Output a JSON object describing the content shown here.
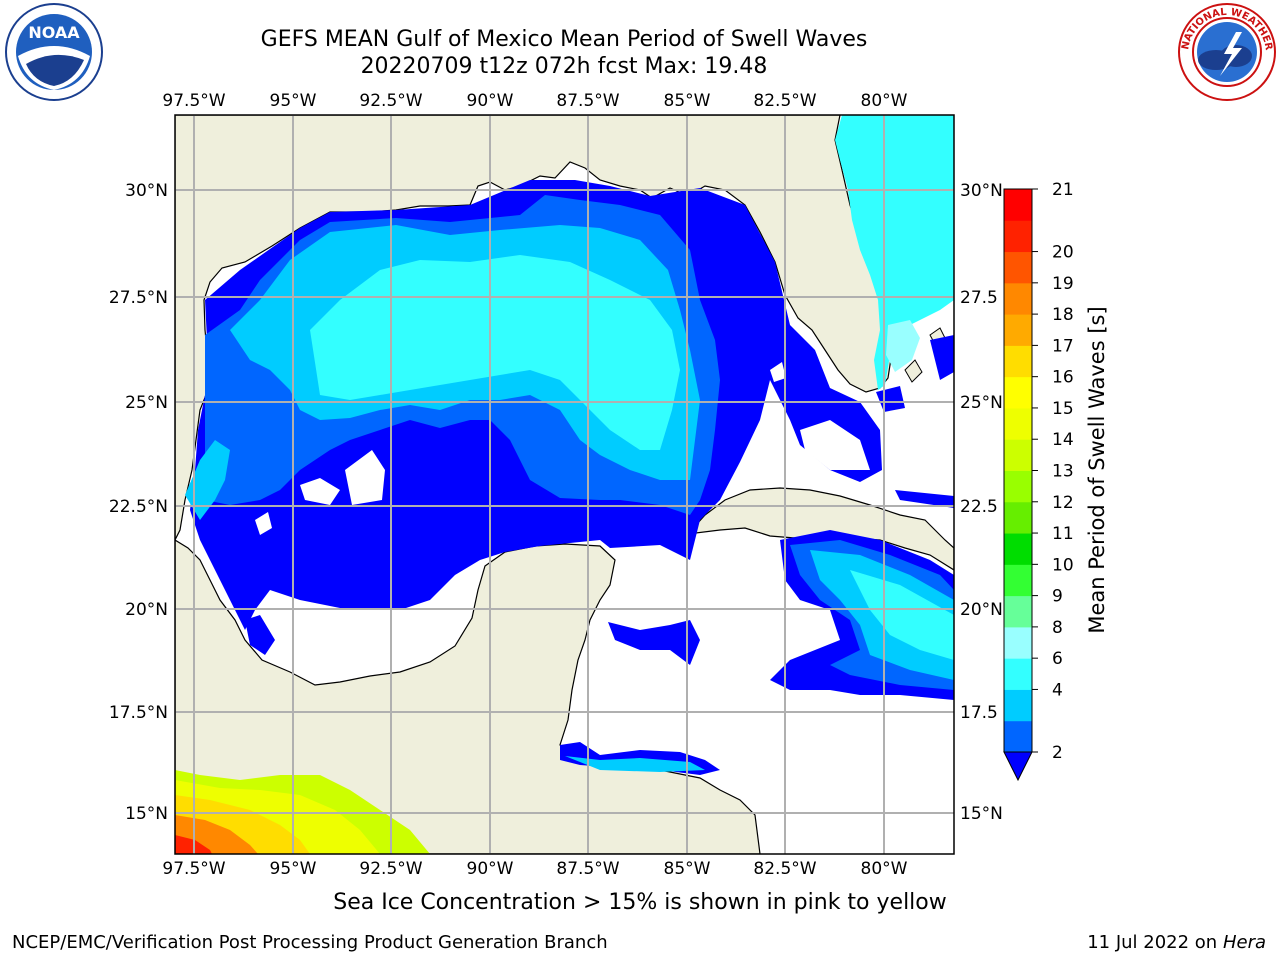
{
  "title_line1": "GEFS MEAN Gulf of Mexico Mean Period of Swell Waves",
  "title_line2": "20220709 t12z 072h fcst   Max: 19.48",
  "lon_labels": [
    "97.5°W",
    "95°W",
    "92.5°W",
    "90°W",
    "87.5°W",
    "85°W",
    "82.5°W",
    "80°W"
  ],
  "lat_labels_left": [
    "30°N",
    "27.5°N",
    "25°N",
    "22.5°N",
    "20°N",
    "17.5°N",
    "15°N"
  ],
  "lat_labels_right": [
    "30°N",
    "27.5",
    "25°N",
    "22.5",
    "20°N",
    "17.5",
    "15°N"
  ],
  "colorbar": {
    "label": "Mean Period of Swell Waves [s]",
    "ticks": [
      "2",
      "4",
      "6",
      "8",
      "9",
      "10",
      "11",
      "12",
      "13",
      "14",
      "15",
      "16",
      "17",
      "18",
      "19",
      "20",
      "21"
    ],
    "colors": [
      "#0066ff",
      "#00ccff",
      "#33ffff",
      "#99ffff",
      "#66ff99",
      "#33ff33",
      "#00dd00",
      "#66ee00",
      "#99ff00",
      "#ccff00",
      "#eeff00",
      "#ffff00",
      "#ffdd00",
      "#ffaa00",
      "#ff8800",
      "#ff5500",
      "#ff2200",
      "#ff0000"
    ],
    "under_color": "#0000ff"
  },
  "colors": {
    "land": "#efefdc",
    "ocean_no_data": "#ffffff",
    "grid": "#b0b0b0"
  },
  "note": "Sea Ice Concentration > 15% is shown in pink to yellow",
  "footer_left": "NCEP/EMC/Verification Post Processing Product Generation Branch",
  "footer_right_date": "11 Jul 2022 on",
  "footer_right_host": "Hera",
  "logos": {
    "left": "noaa-logo",
    "left_text": "NOAA",
    "right": "nws-logo",
    "right_text": "NATIONAL WEATHER SERVICE"
  }
}
